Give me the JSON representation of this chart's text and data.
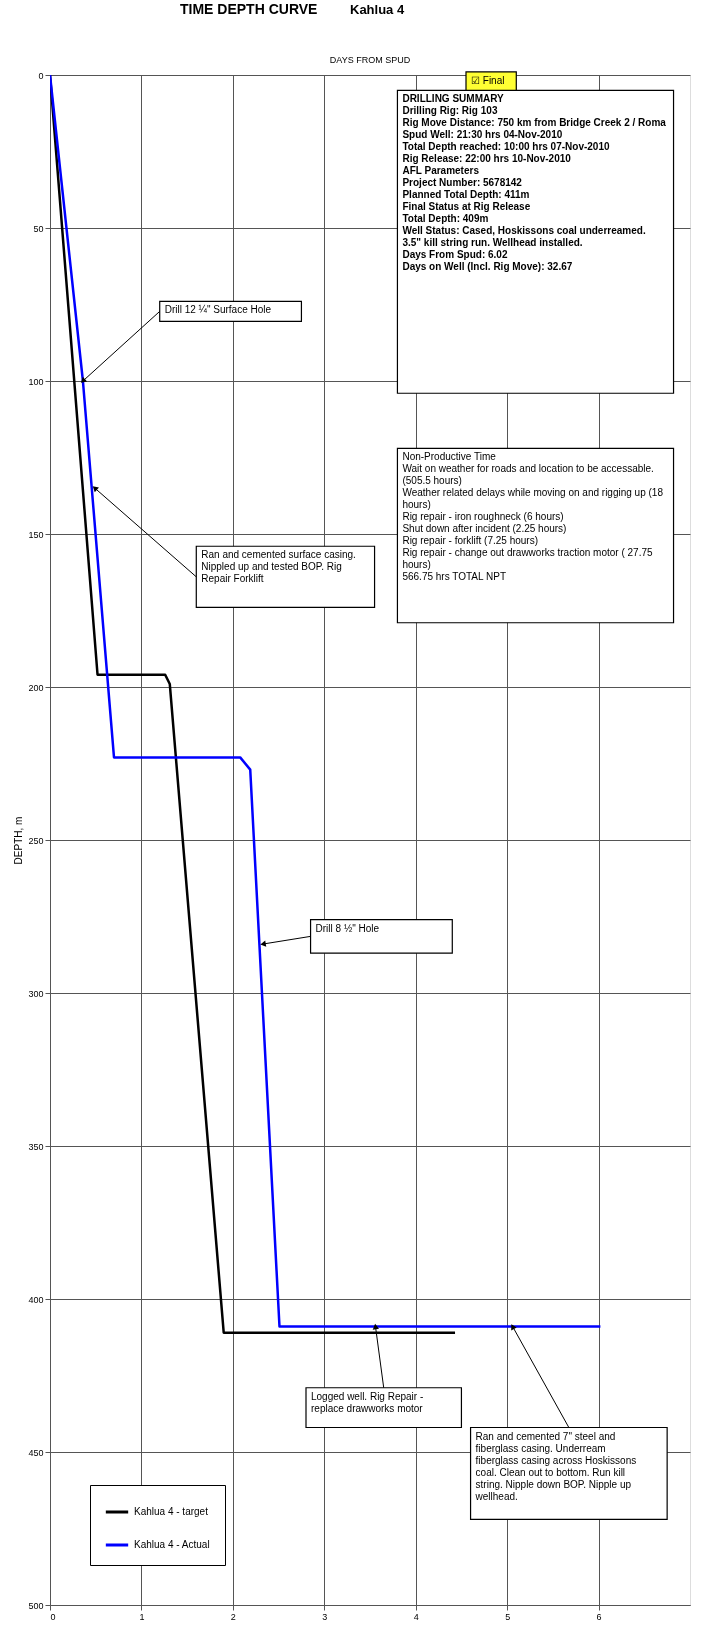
{
  "chart_data": {
    "type": "line",
    "title": "TIME DEPTH CURVE",
    "subtitle": "Kahlua 4",
    "xlabel": "DAYS FROM SPUD",
    "ylabel": "DEPTH, m",
    "xlim": [
      0,
      7
    ],
    "xticks": [
      0,
      1,
      2,
      3,
      4,
      5,
      6
    ],
    "ylim": [
      500,
      0
    ],
    "yticks": [
      0,
      50,
      100,
      150,
      200,
      250,
      300,
      350,
      400,
      450,
      500
    ],
    "grid": true,
    "legend": "bottom left",
    "series": [
      {
        "name": "Kahlua 4 - target",
        "color": "#000000",
        "x": [
          0,
          0.52,
          1.26,
          1.31,
          1.9,
          4.43
        ],
        "values": [
          0,
          196,
          196,
          199,
          411,
          411
        ]
      },
      {
        "name": "Kahlua 4 - Actual",
        "color": "#0000ff",
        "x": [
          0,
          0.36,
          0.7,
          2.08,
          2.19,
          2.51,
          6.02
        ],
        "values": [
          0,
          100,
          223,
          223,
          227,
          409,
          409
        ]
      }
    ],
    "annotations": [
      {
        "text": "Drill 12 ¼\" Surface Hole",
        "x": 0.36,
        "y": 100
      },
      {
        "text": "Ran and cemented surface casing. Nippled up and tested BOP. Rig Repair Forklift",
        "x": 0.49,
        "y": 135
      },
      {
        "text": "Drill 8 ½\" Hole",
        "x": 2.33,
        "y": 284
      },
      {
        "text": "Logged well.  Rig Repair - replace drawworks motor",
        "x": 3.56,
        "y": 409
      },
      {
        "text": "Ran and cemented 7\" steel and fiberglass casing.  Underream fiberglass casing across Hoskissons coal. Clean out to bottom. Run kill string. Nipple down BOP. Nipple up wellhead.",
        "x": 5.06,
        "y": 409
      },
      "DRILLING SUMMARY\n\nDrilling Rig: Rig 103\nRig Move Distance: 750 km from Bridge Creek 2 / Roma\nSpud Well: 21:30 hrs 04-Nov-2010\nTotal Depth reached: 10:00 hrs 07-Nov-2010\nRig Release: 22:00 hrs 10-Nov-2010\n\nAFL Parameters\nProject Number: 5678142\nPlanned Total Depth: 411m\n\nFinal Status at Rig Release\nTotal Depth: 409m\nWell Status: Cased, Hoskissons coal underreamed. 3.5\" kill string run. Wellhead installed.\n\nDays From Spud: 6.02\nDays on Well (Incl. Rig Move): 32.67",
      "☑ Final",
      "Non-Productive Time\n\nWait on weather for roads and location to be accessable. (505.5 hours)\nWeather related delays while moving on and rigging up (18 hours)\nRig repair - iron roughneck (6 hours)\nShut down after incident (2.25 hours)\nRig repair - forklift (7.25 hours)\nRig repair - change out drawworks traction motor ( 27.75 hours)\n\n566.75 hrs TOTAL NPT"
    ]
  }
}
